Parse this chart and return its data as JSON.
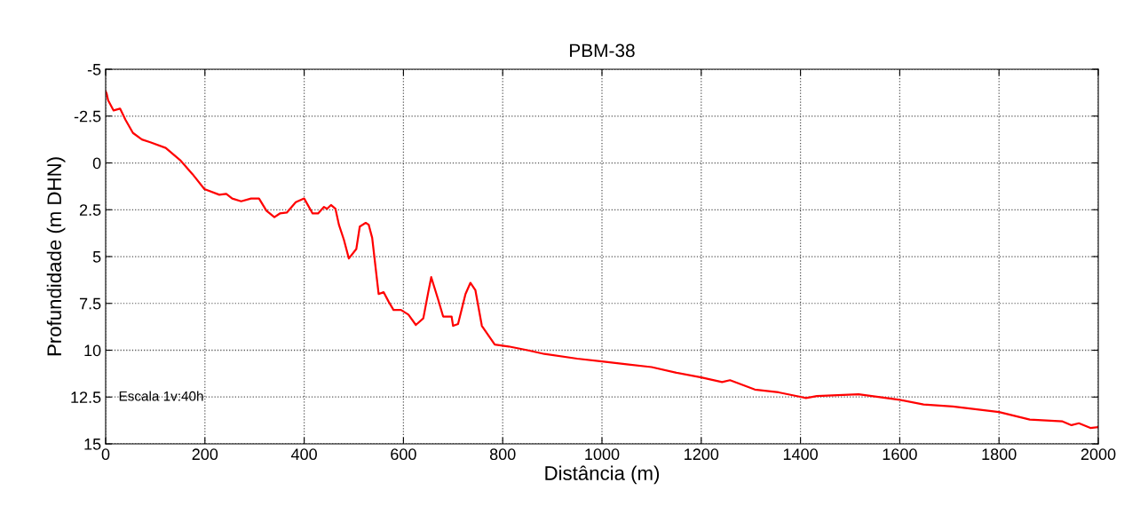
{
  "chart_data": {
    "type": "line",
    "title": "PBM-38",
    "xlabel": "Distância (m)",
    "ylabel": "Profundidade (m DHN)",
    "annotations": [
      "Escala 1v:40h"
    ],
    "series": [
      {
        "color": "#ff0000",
        "x": [
          0,
          2,
          5,
          16,
          29,
          40,
          55,
          73,
          90,
          121,
          150,
          175,
          199,
          229,
          243,
          255,
          273,
          293,
          309,
          324,
          340,
          351,
          365,
          383,
          400,
          417,
          428,
          440,
          446,
          454,
          463,
          470,
          480,
          490,
          505,
          512,
          524,
          530,
          537,
          550,
          560,
          570,
          580,
          595,
          610,
          625,
          640,
          650,
          656,
          670,
          680,
          697,
          700,
          710,
          725,
          735,
          745,
          758,
          784,
          812,
          850,
          884,
          950,
          1000,
          1050,
          1100,
          1150,
          1200,
          1242,
          1258,
          1308,
          1356,
          1402,
          1411,
          1433,
          1517,
          1600,
          1648,
          1707,
          1800,
          1862,
          1928,
          1946,
          1961,
          1984,
          2000
        ],
        "values": [
          -3.82,
          -3.7,
          -3.34,
          -2.8,
          -2.9,
          -2.3,
          -1.6,
          -1.25,
          -1.1,
          -0.8,
          -0.15,
          0.6,
          1.4,
          1.7,
          1.65,
          1.9,
          2.05,
          1.9,
          1.9,
          2.55,
          2.9,
          2.7,
          2.65,
          2.1,
          1.9,
          2.7,
          2.7,
          2.35,
          2.45,
          2.25,
          2.45,
          3.3,
          4.1,
          5.1,
          4.6,
          3.4,
          3.2,
          3.3,
          4.0,
          7.0,
          6.9,
          7.4,
          7.85,
          7.85,
          8.1,
          8.65,
          8.3,
          6.9,
          6.1,
          7.3,
          8.2,
          8.2,
          8.7,
          8.6,
          7.0,
          6.4,
          6.8,
          8.7,
          9.7,
          9.8,
          10.0,
          10.2,
          10.45,
          10.6,
          10.75,
          10.9,
          11.2,
          11.45,
          11.7,
          11.6,
          12.1,
          12.25,
          12.5,
          12.55,
          12.45,
          12.35,
          12.65,
          12.9,
          13.0,
          13.3,
          13.7,
          13.8,
          14.0,
          13.9,
          14.15,
          14.1
        ]
      }
    ],
    "xlim": [
      0,
      2000
    ],
    "xticks": [
      0,
      200,
      400,
      600,
      800,
      1000,
      1200,
      1400,
      1600,
      1800,
      2000
    ],
    "ylim": [
      15,
      -5
    ],
    "yticks": [
      -5,
      -2.5,
      0,
      2.5,
      5,
      7.5,
      10,
      12.5,
      15
    ],
    "grid": true,
    "line_style": "solid",
    "marker": "none"
  }
}
